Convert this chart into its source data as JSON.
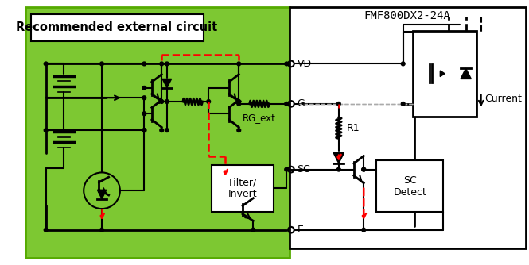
{
  "title_left": "Recommended external circuit",
  "title_right": "FMF800DX2-24A",
  "label_VD": "VD",
  "label_G": "G",
  "label_SC": "SC",
  "label_E": "E",
  "label_RG_ext": "RG_ext",
  "label_R1": "R1",
  "label_filter": "Filter/\nInvert",
  "label_sc_detect": "SC\nDetect",
  "label_current": "Current",
  "bg_green": "#7DC832",
  "bg_white": "#FFFFFF",
  "line_color": "#000000",
  "red_dash_color": "#FF0000",
  "gray_dash_color": "#AAAAAA",
  "fig_width": 6.65,
  "fig_height": 3.34,
  "dpi": 100
}
